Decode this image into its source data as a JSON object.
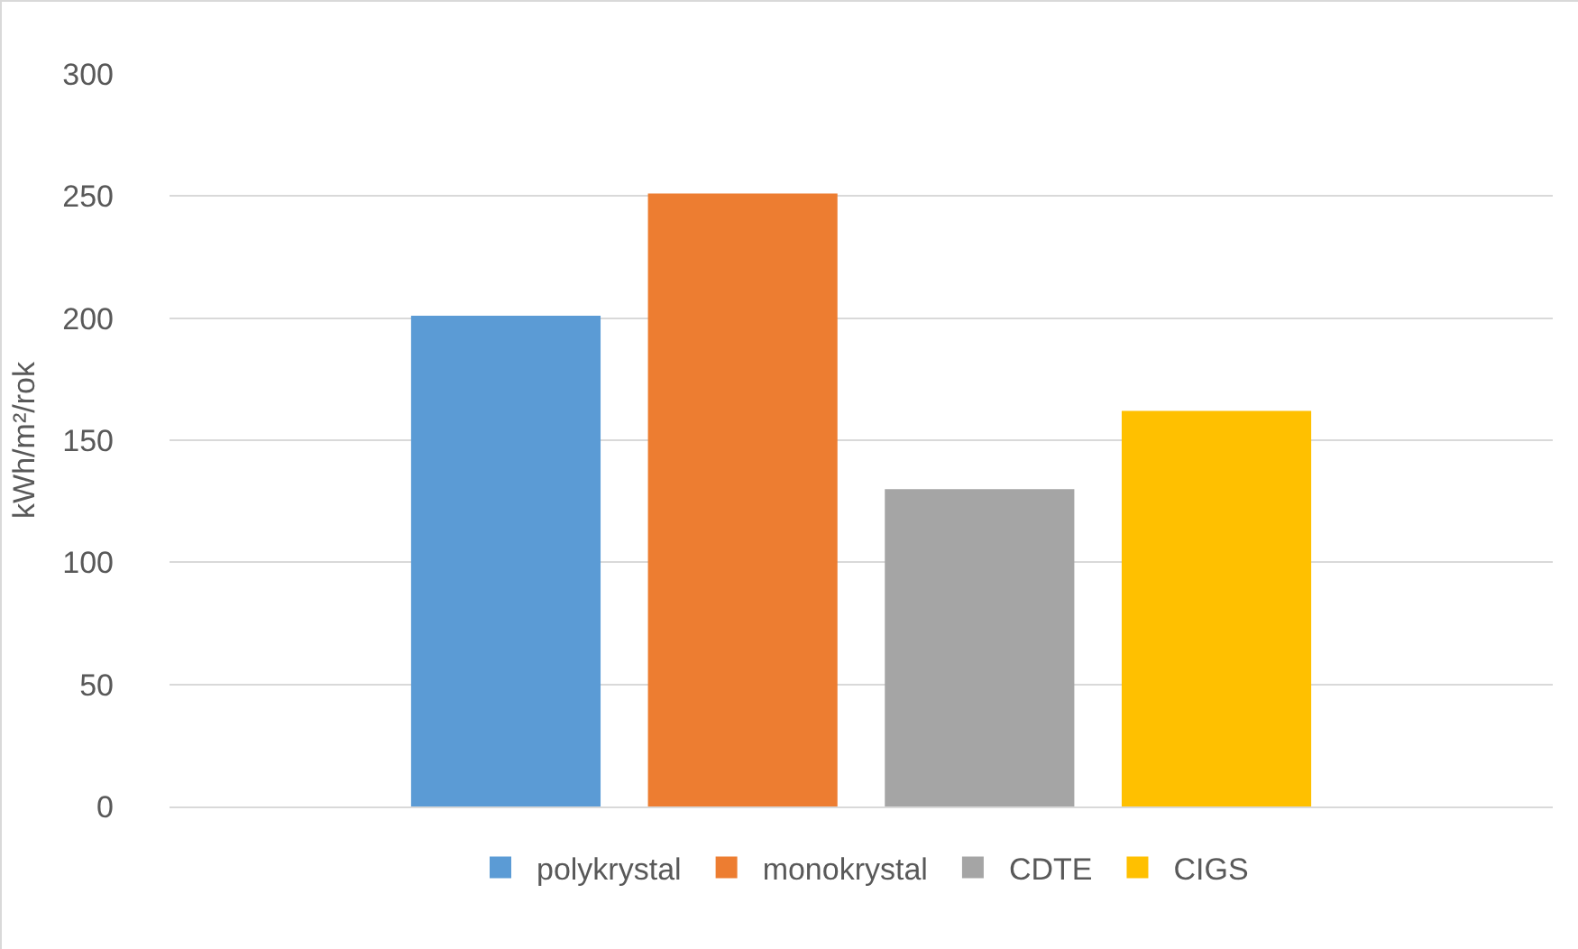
{
  "chart_data": {
    "type": "bar",
    "ylabel": "kWh/m²/rok",
    "categories": [
      null
    ],
    "series": [
      {
        "name": "polykrystal",
        "color": "#5b9bd5",
        "values": [
          201
        ]
      },
      {
        "name": "monokrystal",
        "color": "#ed7d31",
        "values": [
          251
        ]
      },
      {
        "name": "CDTE",
        "color": "#a5a5a5",
        "values": [
          130
        ]
      },
      {
        "name": "CIGS",
        "color": "#ffc000",
        "values": [
          162
        ]
      }
    ],
    "ylim": [
      0,
      300
    ],
    "yticks": [
      0,
      50,
      100,
      150,
      200,
      250,
      300
    ],
    "grid": "y",
    "legend": "bottom",
    "tick_labels": "y"
  }
}
